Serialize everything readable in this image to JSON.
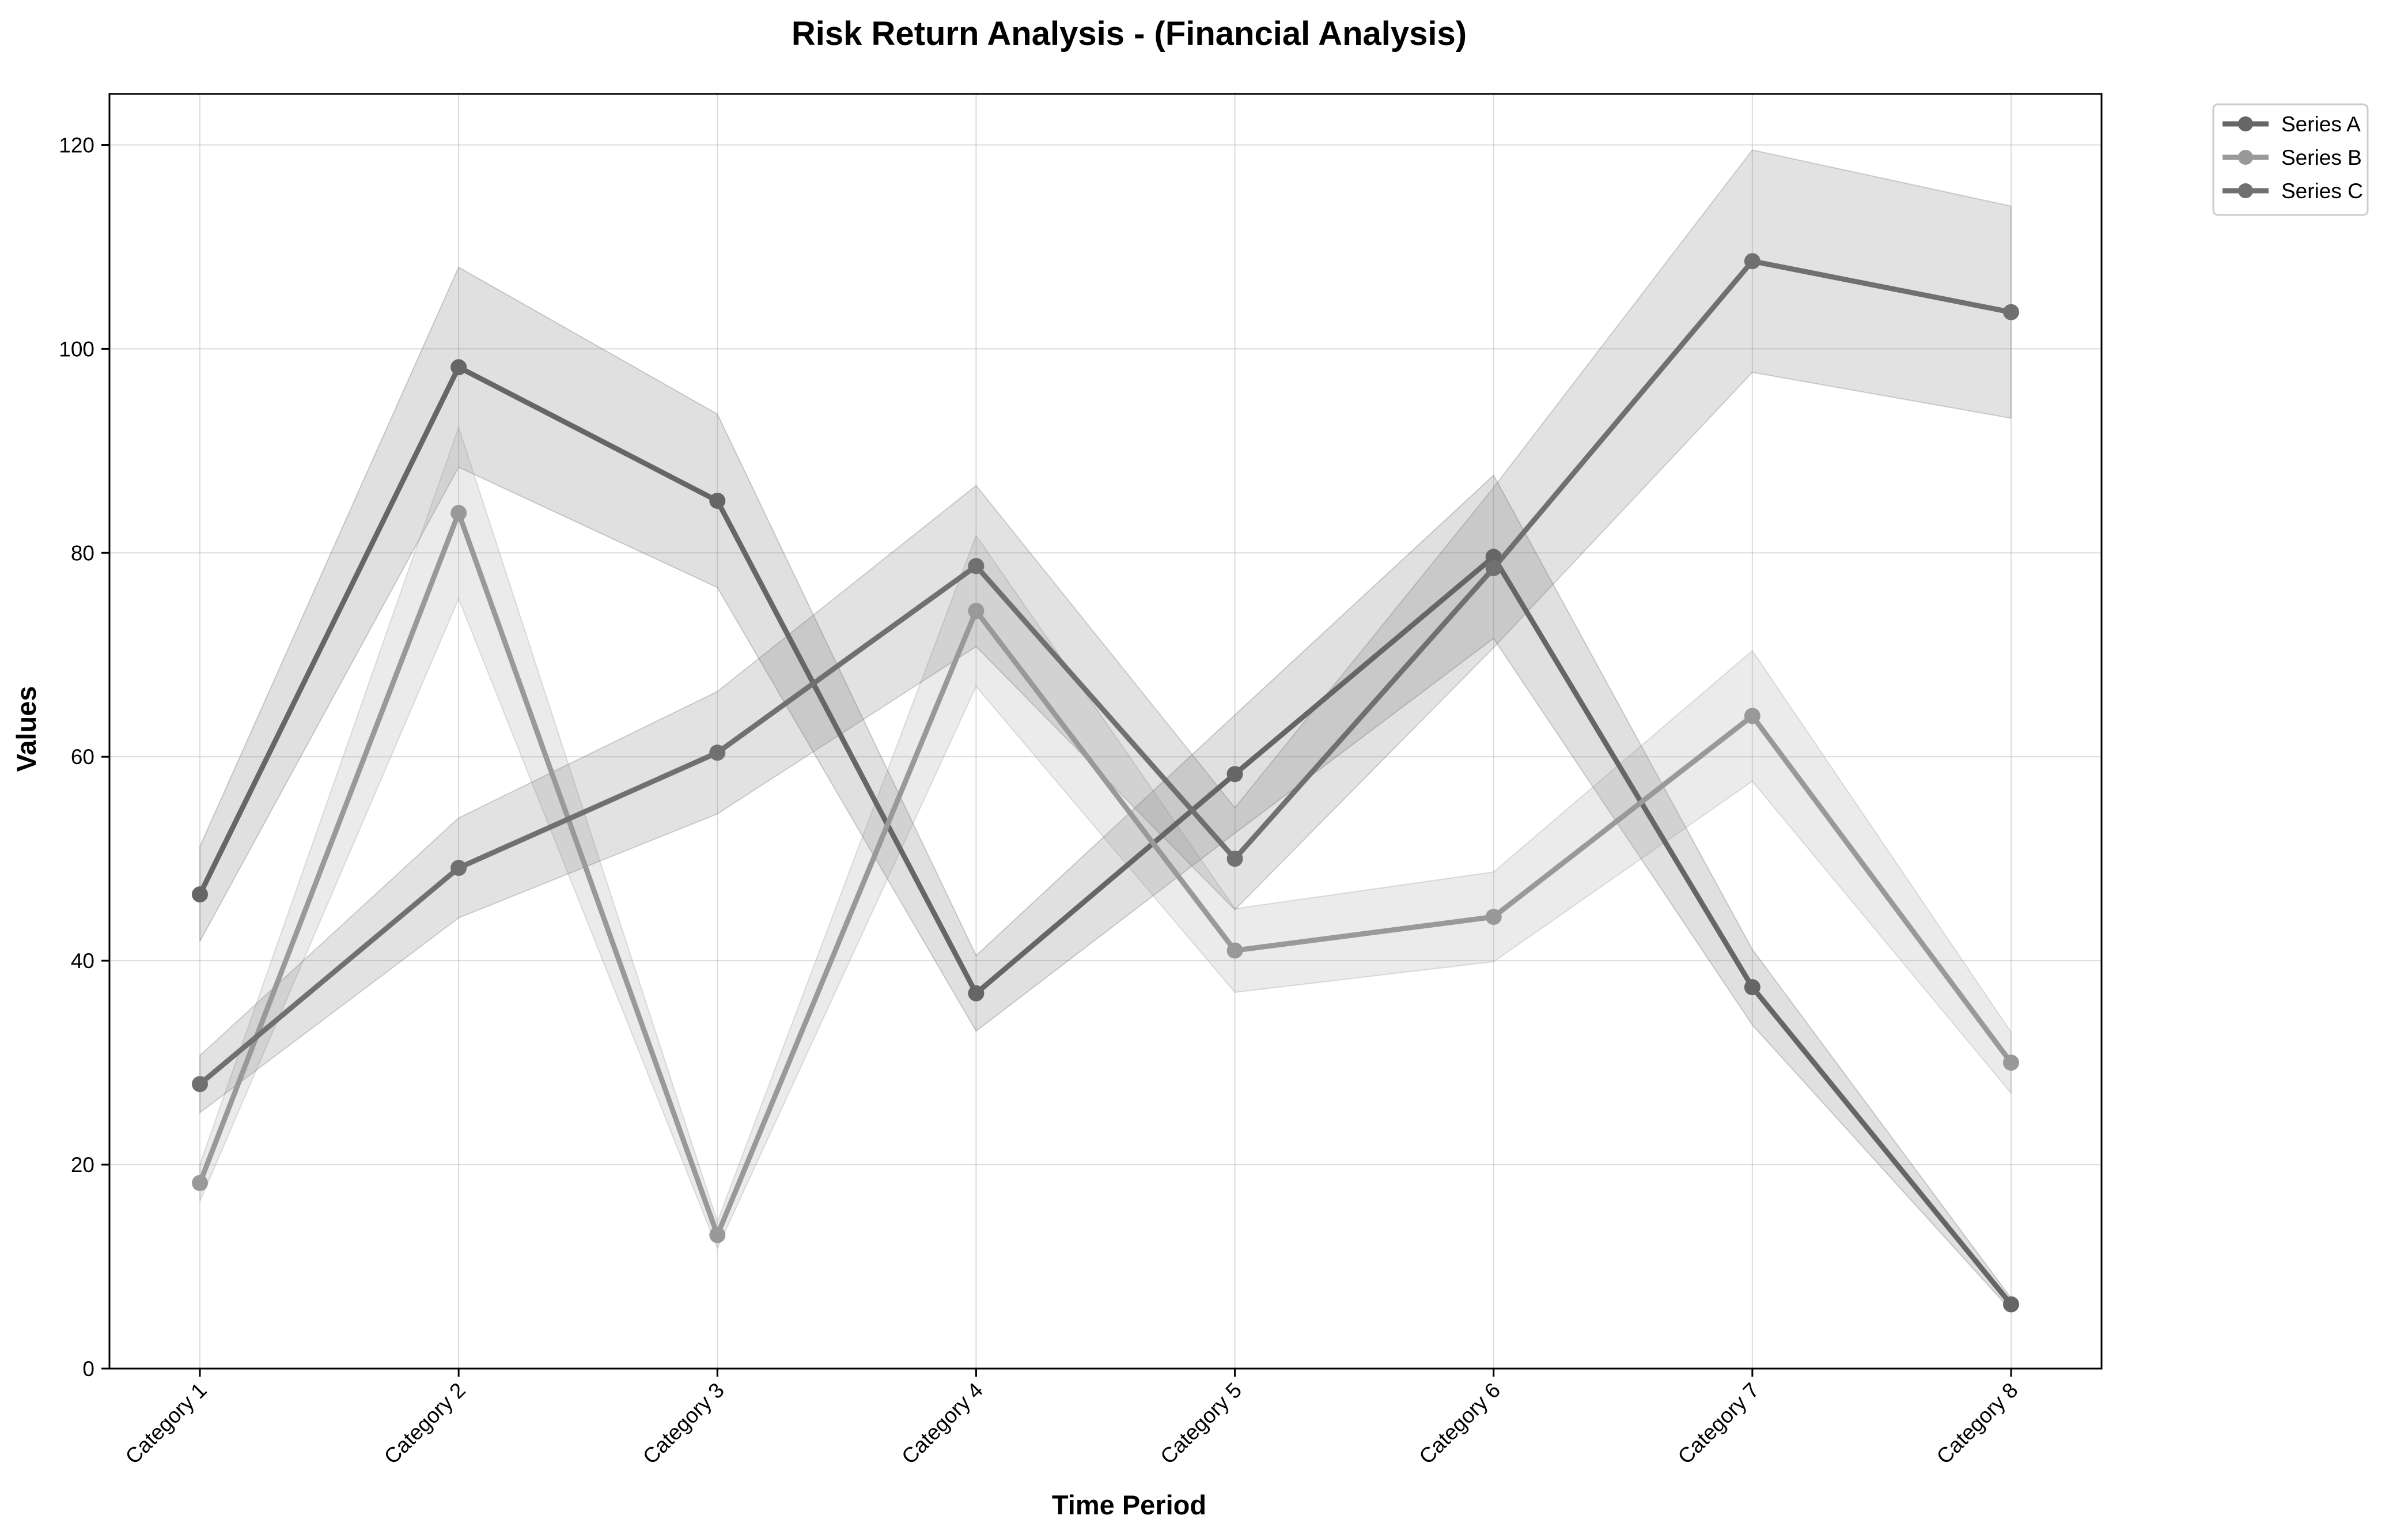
{
  "chart_data": {
    "type": "line",
    "title": "Risk Return Analysis - (Financial Analysis)",
    "xlabel": "Time Period",
    "ylabel": "Values",
    "categories": [
      "Category 1",
      "Category 2",
      "Category 3",
      "Category 4",
      "Category 5",
      "Category 6",
      "Category 7",
      "Category 8"
    ],
    "ylim": [
      0,
      125
    ],
    "yticks": [
      0,
      20,
      40,
      60,
      80,
      100,
      120
    ],
    "grid": true,
    "legend_position": "outside-top-right",
    "series": [
      {
        "name": "Series A",
        "color": "#666666",
        "values": [
          46.5,
          98.2,
          85.1,
          36.8,
          58.3,
          79.6,
          37.4,
          6.3
        ],
        "lower": [
          41.9,
          88.4,
          76.6,
          33.1,
          52.5,
          71.6,
          33.7,
          5.7
        ],
        "upper": [
          51.2,
          108.0,
          93.6,
          40.5,
          64.1,
          87.6,
          41.1,
          6.9
        ]
      },
      {
        "name": "Series B",
        "color": "#999999",
        "values": [
          18.2,
          83.9,
          13.1,
          74.3,
          41.0,
          44.3,
          64.0,
          30.0
        ],
        "lower": [
          16.4,
          75.5,
          11.8,
          66.9,
          36.9,
          39.9,
          57.6,
          27.0
        ],
        "upper": [
          20.0,
          92.3,
          14.4,
          81.7,
          45.1,
          48.7,
          70.4,
          33.0
        ]
      },
      {
        "name": "Series C",
        "color": "#707070",
        "values": [
          27.9,
          49.1,
          60.4,
          78.7,
          50.0,
          78.5,
          108.6,
          103.6
        ],
        "lower": [
          25.1,
          44.2,
          54.4,
          70.8,
          45.0,
          70.7,
          97.7,
          93.2
        ],
        "upper": [
          30.7,
          54.0,
          66.4,
          86.6,
          55.0,
          86.4,
          119.5,
          114.0
        ]
      }
    ]
  }
}
